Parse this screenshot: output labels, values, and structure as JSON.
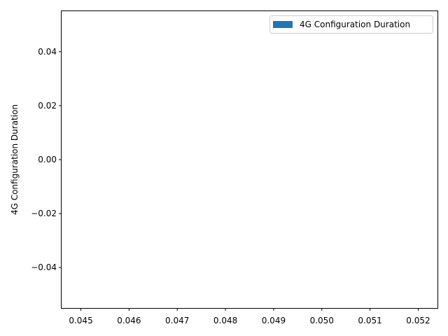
{
  "chart_data": {
    "type": "bar",
    "title": "",
    "xlabel": "",
    "ylabel": "4G Configuration Duration",
    "series": [
      {
        "name": "4G Configuration Duration",
        "values": [],
        "color": "#1f77b4"
      }
    ],
    "xlim": [
      0.0446,
      0.0524
    ],
    "ylim": [
      -0.055,
      0.055
    ],
    "x_ticks": [
      "0.045",
      "0.046",
      "0.047",
      "0.048",
      "0.049",
      "0.050",
      "0.051",
      "0.052"
    ],
    "y_ticks": [
      "−0.04",
      "−0.02",
      "0.00",
      "0.02",
      "0.04"
    ],
    "x_tick_values": [
      0.045,
      0.046,
      0.047,
      0.048,
      0.049,
      0.05,
      0.051,
      0.052
    ],
    "y_tick_values": [
      -0.04,
      -0.02,
      0.0,
      0.02,
      0.04
    ],
    "grid": false,
    "legend_position": "upper-right",
    "colors": {
      "series": "#1f77b4",
      "axes": "#000000",
      "background": "#ffffff"
    }
  }
}
